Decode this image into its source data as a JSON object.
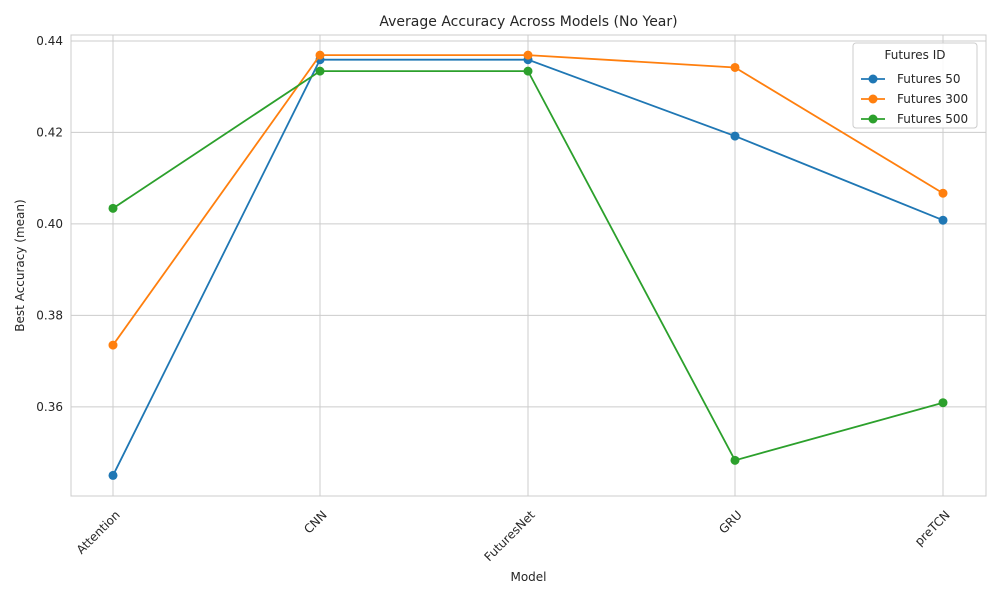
{
  "chart_data": {
    "type": "line",
    "title": "Average Accuracy Across Models (No Year)",
    "xlabel": "Model",
    "ylabel": "Best Accuracy (mean)",
    "categories": [
      "Attention",
      "CNN",
      "FuturesNet",
      "GRU",
      "preTCN"
    ],
    "ylim": [
      0.3405,
      0.4413
    ],
    "yticks": [
      0.36,
      0.38,
      0.4,
      0.42,
      0.44
    ],
    "ytick_labels": [
      "0.36",
      "0.38",
      "0.40",
      "0.42",
      "0.44"
    ],
    "grid": true,
    "legend": {
      "title": "Futures ID",
      "placement": "top-right"
    },
    "series": [
      {
        "name": "Futures 50",
        "color": "#1f77b4",
        "values": [
          0.345,
          0.4359,
          0.4359,
          0.4192,
          0.4008
        ]
      },
      {
        "name": "Futures 300",
        "color": "#ff7f0e",
        "values": [
          0.3735,
          0.4369,
          0.4369,
          0.4342,
          0.4067
        ]
      },
      {
        "name": "Futures 500",
        "color": "#2ca02c",
        "values": [
          0.4034,
          0.4334,
          0.4334,
          0.3483,
          0.3609
        ]
      }
    ]
  }
}
